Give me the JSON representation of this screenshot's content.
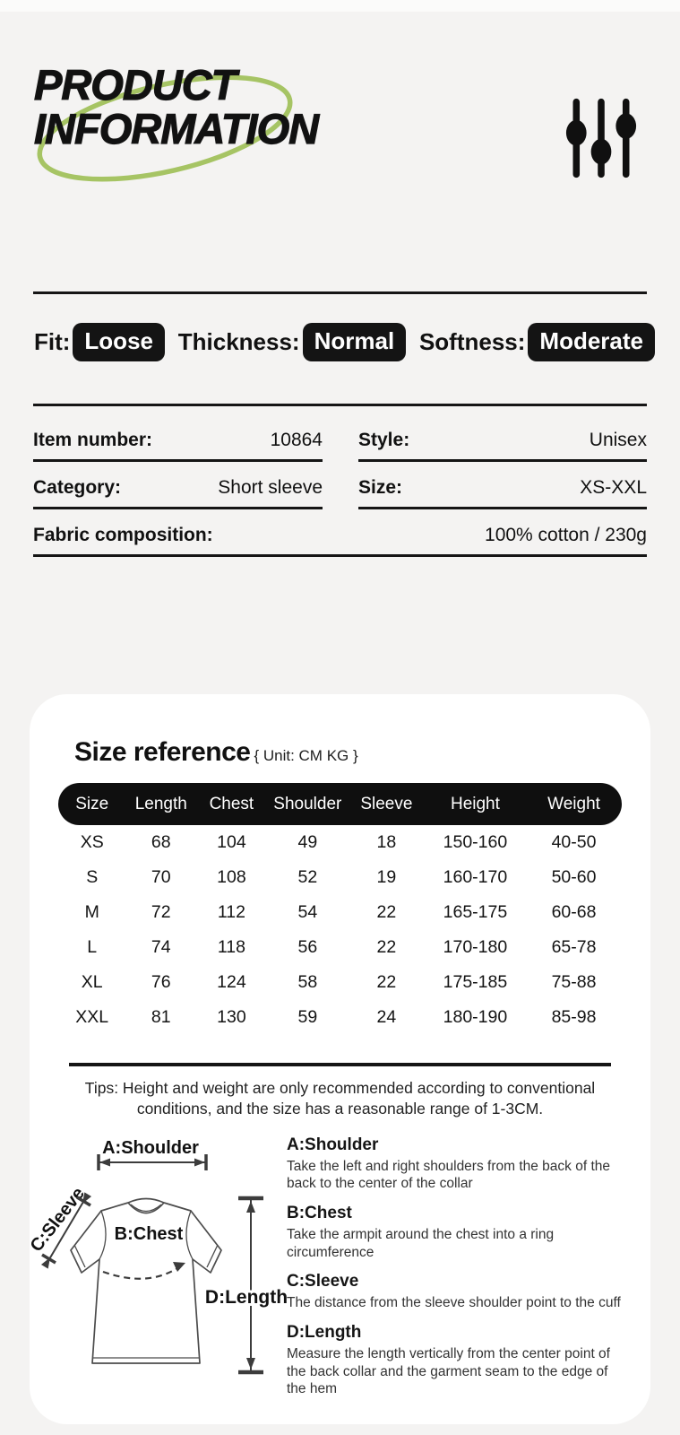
{
  "colors": {
    "background": "#f4f3f2",
    "card": "#ffffff",
    "black": "#141414",
    "accent_green": "#a6c464"
  },
  "header": {
    "title_line1": "PRODUCT",
    "title_line2": "INFORMATION",
    "icon": "sliders-icon"
  },
  "attributes": [
    {
      "label": "Fit:",
      "value": "Loose"
    },
    {
      "label": "Thickness:",
      "value": "Normal"
    },
    {
      "label": "Softness:",
      "value": "Moderate"
    }
  ],
  "details": {
    "rows": [
      {
        "label": "Item number:",
        "value": "10864"
      },
      {
        "label": "Style:",
        "value": "Unisex"
      },
      {
        "label": "Category:",
        "value": "Short sleeve"
      },
      {
        "label": "Size:",
        "value": "XS-XXL"
      },
      {
        "label": "Fabric composition:",
        "value": "100% cotton / 230g"
      }
    ]
  },
  "size_reference": {
    "title": "Size reference",
    "unit_note": "{ Unit: CM KG }",
    "table": {
      "columns": [
        "Size",
        "Length",
        "Chest",
        "Shoulder",
        "Sleeve",
        "Height",
        "Weight"
      ],
      "rows": [
        [
          "XS",
          "68",
          "104",
          "49",
          "18",
          "150-160",
          "40-50"
        ],
        [
          "S",
          "70",
          "108",
          "52",
          "19",
          "160-170",
          "50-60"
        ],
        [
          "M",
          "72",
          "112",
          "54",
          "22",
          "165-175",
          "60-68"
        ],
        [
          "L",
          "74",
          "118",
          "56",
          "22",
          "170-180",
          "65-78"
        ],
        [
          "XL",
          "76",
          "124",
          "58",
          "22",
          "175-185",
          "75-88"
        ],
        [
          "XXL",
          "81",
          "130",
          "59",
          "24",
          "180-190",
          "85-98"
        ]
      ]
    },
    "tips": "Tips: Height and weight are only recommended according to conventional conditions, and the size has a reasonable range of 1-3CM."
  },
  "measure_guide": {
    "diagram_labels": {
      "shoulder": "A:Shoulder",
      "chest": "B:Chest",
      "sleeve": "C:Sleeve",
      "length": "D:Length"
    },
    "items": [
      {
        "title": "A:Shoulder",
        "desc": "Take the left and right shoulders from the back of the back to the center of the collar"
      },
      {
        "title": "B:Chest",
        "desc": "Take the armpit around the chest into a ring circumference"
      },
      {
        "title": "C:Sleeve",
        "desc": "The distance from the sleeve shoulder point to the cuff"
      },
      {
        "title": "D:Length",
        "desc": "Measure the length vertically from the center point of the back collar and the garment seam to the edge of the hem"
      }
    ]
  }
}
